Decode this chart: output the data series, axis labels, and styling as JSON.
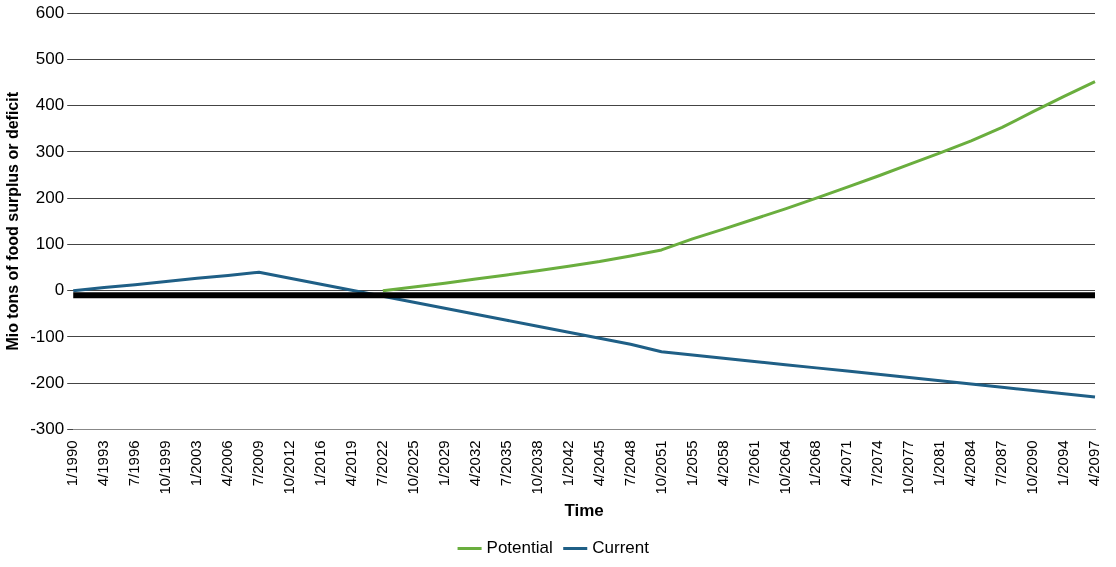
{
  "chart_data": {
    "type": "line",
    "xlabel": "Time",
    "ylabel": "Mio tons of food surplus or deficit",
    "categories": [
      "1/1990",
      "4/1993",
      "7/1996",
      "10/1999",
      "1/2003",
      "4/2006",
      "7/2009",
      "10/2012",
      "1/2016",
      "4/2019",
      "7/2022",
      "10/2025",
      "1/2029",
      "4/2032",
      "7/2035",
      "10/2038",
      "1/2042",
      "4/2045",
      "7/2048",
      "10/2051",
      "1/2055",
      "4/2058",
      "7/2061",
      "10/2064",
      "1/2068",
      "4/2071",
      "7/2074",
      "10/2077",
      "1/2081",
      "4/2084",
      "7/2087",
      "10/2090",
      "1/2094",
      "4/2097"
    ],
    "series": [
      {
        "name": "Potential",
        "color": "#6aae3e",
        "values": [
          null,
          null,
          null,
          null,
          null,
          null,
          null,
          null,
          null,
          null,
          0,
          8,
          16,
          25,
          34,
          43,
          53,
          63,
          75,
          88,
          112,
          133,
          155,
          177,
          200,
          224,
          248,
          273,
          298,
          324,
          353,
          387,
          420,
          452
        ]
      },
      {
        "name": "Current",
        "color": "#1f5f86",
        "values": [
          0,
          7,
          13,
          20,
          27,
          33,
          40,
          27,
          14,
          1,
          -12,
          -25,
          -38,
          -51,
          -64,
          -77,
          -90,
          -103,
          -116,
          -132,
          -139,
          -146,
          -153,
          -160,
          -167,
          -174,
          -181,
          -188,
          -195,
          -202,
          -209,
          -216,
          -223,
          -230
        ]
      }
    ],
    "ylim": [
      -300,
      600
    ],
    "yticks": [
      -300,
      -200,
      -100,
      0,
      100,
      200,
      300,
      400,
      500,
      600
    ],
    "ref_lines": [
      {
        "axis": "y",
        "value": -10,
        "color": "#000000"
      }
    ],
    "grid": "y",
    "legend": "bottom",
    "marker": "none",
    "line_style": "solid"
  }
}
